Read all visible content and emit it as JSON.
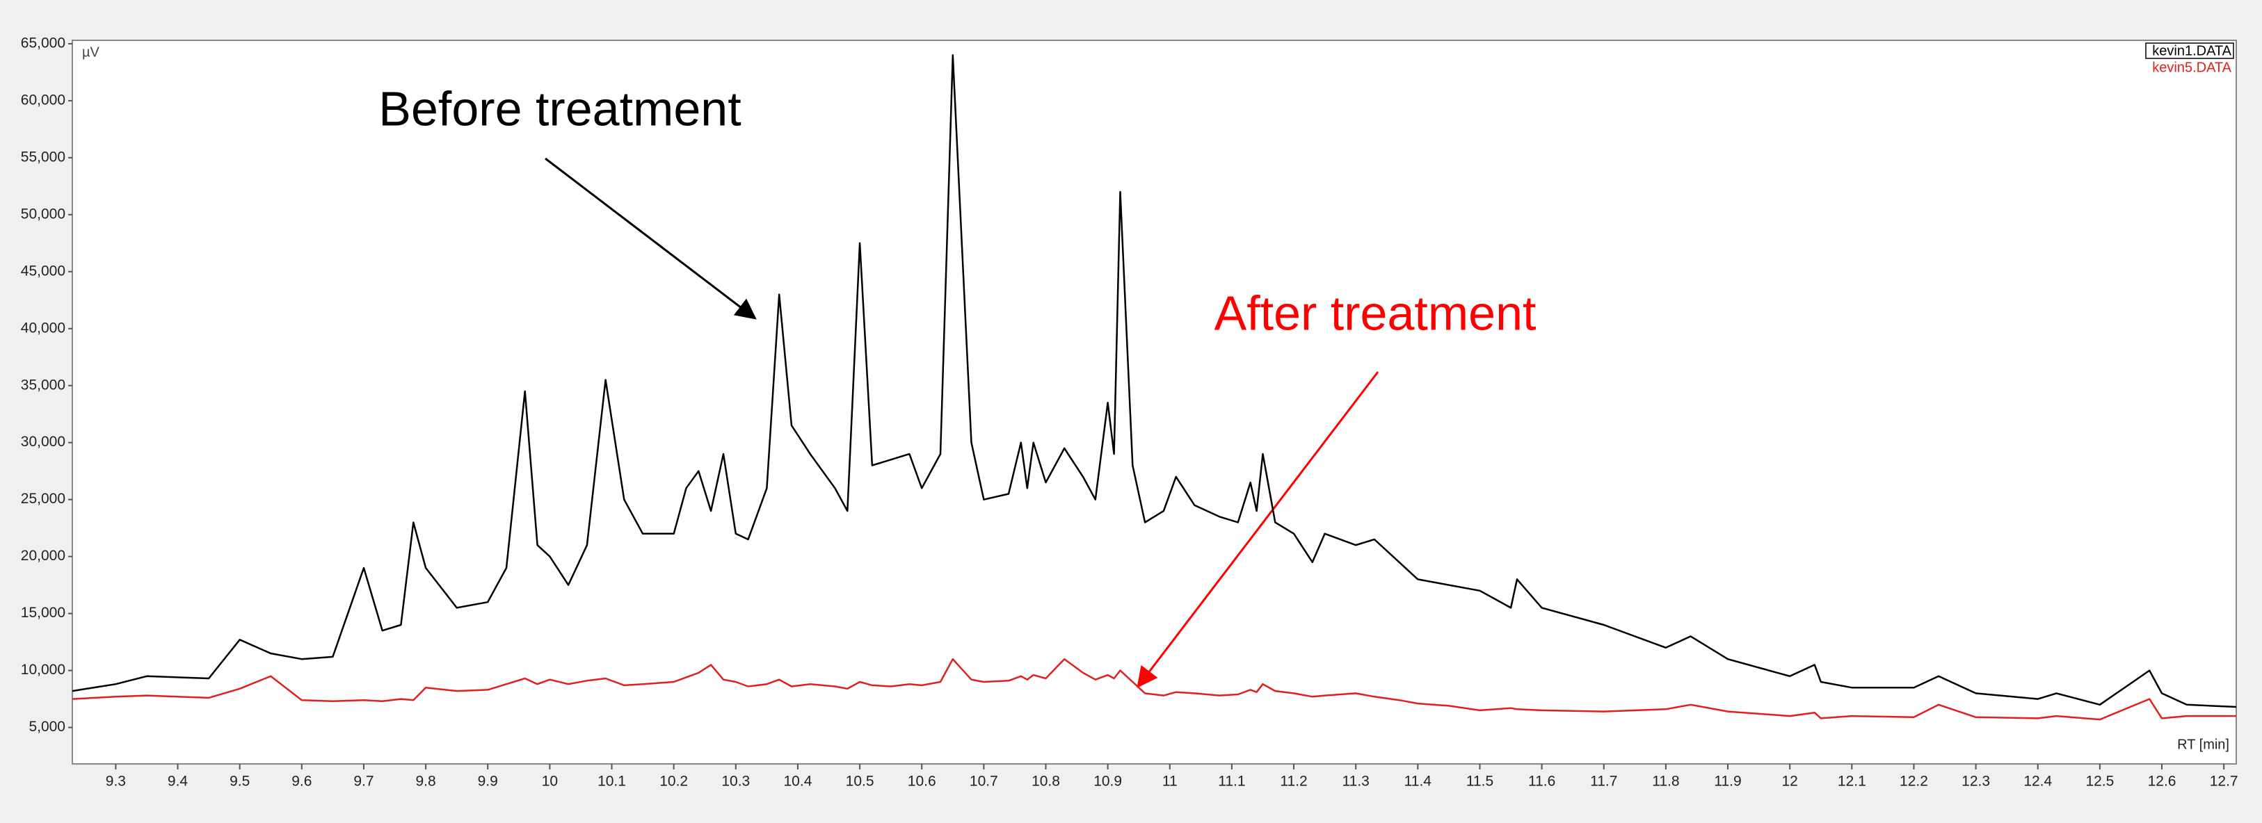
{
  "chart_data": {
    "type": "line",
    "y_label": "µV",
    "x_label": "RT [min]",
    "x": [
      9.23,
      9.3,
      9.35,
      9.45,
      9.5,
      9.55,
      9.6,
      9.65,
      9.7,
      9.73,
      9.76,
      9.78,
      9.8,
      9.85,
      9.9,
      9.93,
      9.96,
      9.98,
      10.0,
      10.03,
      10.06,
      10.09,
      10.12,
      10.15,
      10.2,
      10.22,
      10.24,
      10.26,
      10.28,
      10.3,
      10.32,
      10.35,
      10.37,
      10.39,
      10.42,
      10.46,
      10.48,
      10.5,
      10.52,
      10.55,
      10.58,
      10.6,
      10.63,
      10.65,
      10.68,
      10.7,
      10.74,
      10.76,
      10.77,
      10.78,
      10.8,
      10.83,
      10.86,
      10.88,
      10.9,
      10.91,
      10.92,
      10.94,
      10.96,
      10.99,
      11.01,
      11.04,
      11.08,
      11.11,
      11.13,
      11.14,
      11.15,
      11.17,
      11.2,
      11.23,
      11.25,
      11.3,
      11.33,
      11.37,
      11.4,
      11.45,
      11.5,
      11.55,
      11.56,
      11.6,
      11.7,
      11.8,
      11.84,
      11.9,
      12.0,
      12.04,
      12.05,
      12.1,
      12.2,
      12.24,
      12.3,
      12.4,
      12.43,
      12.5,
      12.58,
      12.6,
      12.64,
      12.72
    ],
    "series": [
      {
        "name": "kevin1.DATA",
        "color": "#000000",
        "values": [
          8200,
          8800,
          9500,
          9300,
          12700,
          11500,
          11000,
          11200,
          19000,
          13500,
          14000,
          23000,
          19000,
          15500,
          16000,
          19000,
          34500,
          21000,
          20000,
          17500,
          21000,
          35500,
          25000,
          22000,
          22000,
          26000,
          27500,
          24000,
          29000,
          22000,
          21500,
          26000,
          43000,
          31500,
          29000,
          26000,
          24000,
          47500,
          28000,
          28500,
          29000,
          26000,
          29000,
          64000,
          30000,
          25000,
          25500,
          30000,
          26000,
          30000,
          26500,
          29500,
          27000,
          25000,
          33500,
          29000,
          52000,
          28000,
          23000,
          24000,
          27000,
          24500,
          23500,
          23000,
          26500,
          24000,
          29000,
          23000,
          22000,
          19500,
          22000,
          21000,
          21500,
          19500,
          18000,
          17500,
          17000,
          15500,
          18000,
          15500,
          14000,
          12000,
          13000,
          11000,
          9500,
          10500,
          9000,
          8500,
          8500,
          9500,
          8000,
          7500,
          8000,
          7000,
          10000,
          8000,
          7000,
          6800
        ]
      },
      {
        "name": "kevin5.DATA",
        "color": "#e02020",
        "values": [
          7500,
          7700,
          7800,
          7600,
          8400,
          9500,
          7400,
          7300,
          7400,
          7300,
          7500,
          7400,
          8500,
          8200,
          8300,
          8800,
          9300,
          8800,
          9200,
          8800,
          9100,
          9300,
          8700,
          8800,
          9000,
          9400,
          9800,
          10500,
          9200,
          9000,
          8600,
          8800,
          9200,
          8600,
          8800,
          8600,
          8400,
          9000,
          8700,
          8600,
          8800,
          8700,
          9000,
          11000,
          9200,
          9000,
          9100,
          9500,
          9200,
          9600,
          9300,
          11000,
          9800,
          9200,
          9600,
          9300,
          10000,
          9000,
          8000,
          7800,
          8100,
          8000,
          7800,
          7900,
          8300,
          8100,
          8800,
          8200,
          8000,
          7700,
          7800,
          8000,
          7700,
          7400,
          7100,
          6900,
          6500,
          6700,
          6600,
          6500,
          6400,
          6600,
          7000,
          6400,
          6000,
          6300,
          5800,
          6000,
          5900,
          7000,
          5900,
          5800,
          6000,
          5700,
          7500,
          5800,
          6000,
          6000
        ]
      }
    ],
    "xlim": [
      9.23,
      12.72
    ],
    "ylim": [
      1800,
      65300
    ],
    "xticks": [
      9.3,
      9.4,
      9.5,
      9.6,
      9.7,
      9.8,
      9.9,
      10,
      10.1,
      10.2,
      10.3,
      10.4,
      10.5,
      10.6,
      10.7,
      10.8,
      10.9,
      11,
      11.1,
      11.2,
      11.3,
      11.4,
      11.5,
      11.6,
      11.7,
      11.8,
      11.9,
      12,
      12.1,
      12.2,
      12.3,
      12.4,
      12.5,
      12.6,
      12.7
    ],
    "yticks": [
      {
        "value": 5000,
        "label": "5,000"
      },
      {
        "value": 10000,
        "label": "10,000"
      },
      {
        "value": 15000,
        "label": "15,000"
      },
      {
        "value": 20000,
        "label": "20,000"
      },
      {
        "value": 25000,
        "label": "25,000"
      },
      {
        "value": 30000,
        "label": "30,000"
      },
      {
        "value": 35000,
        "label": "35,000"
      },
      {
        "value": 40000,
        "label": "40,000"
      },
      {
        "value": 45000,
        "label": "45,000"
      },
      {
        "value": 50000,
        "label": "50,000"
      },
      {
        "value": 55000,
        "label": "55,000"
      },
      {
        "value": 60000,
        "label": "60,000"
      },
      {
        "value": 65000,
        "label": "65,000"
      }
    ],
    "annotations": [
      {
        "text": "Before treatment",
        "color": "#000000"
      },
      {
        "text": "After treatment",
        "color": "#ff0000"
      }
    ]
  }
}
